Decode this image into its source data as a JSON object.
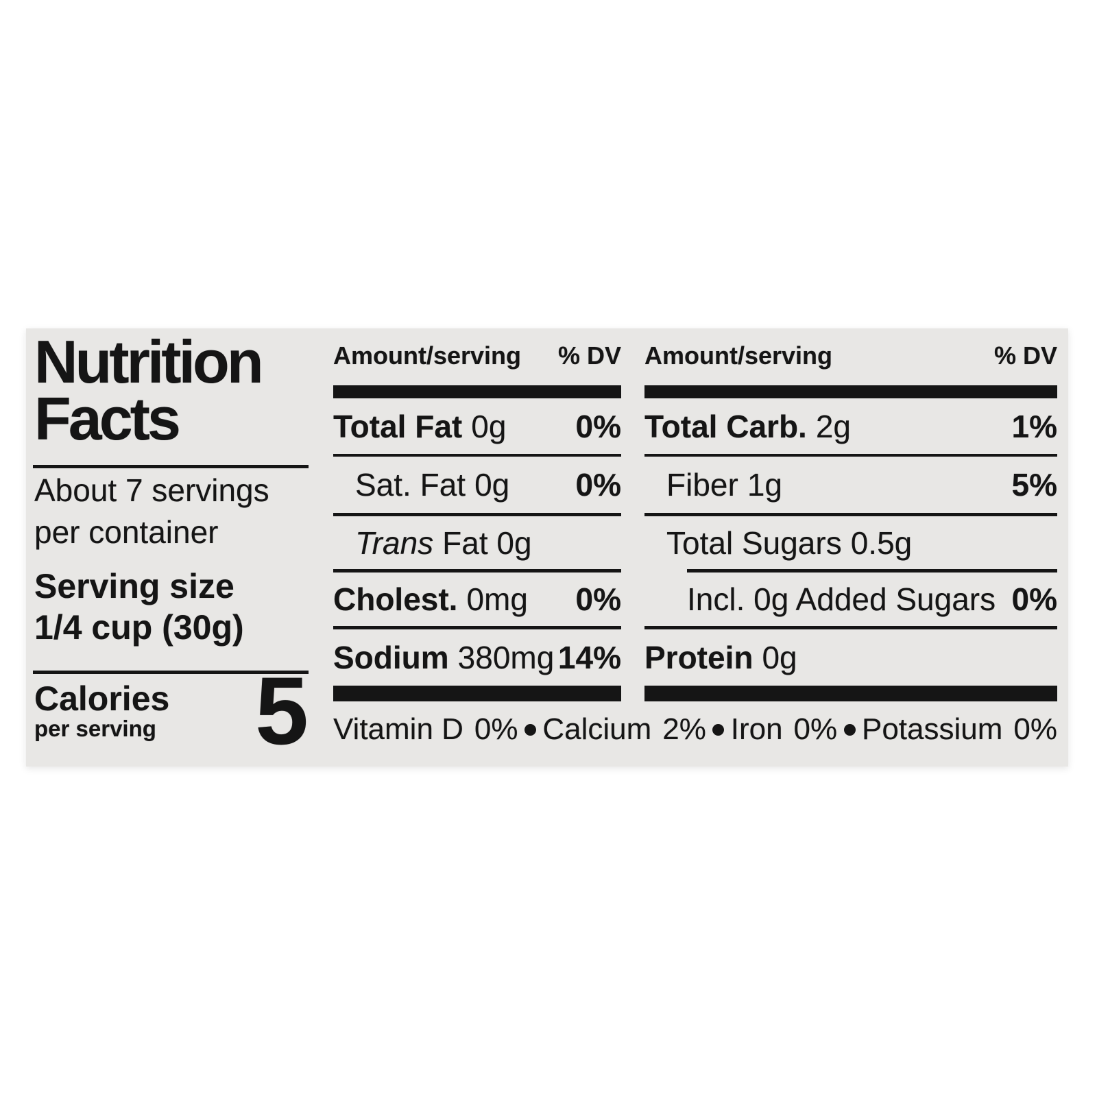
{
  "nutrition_label": {
    "title_line1": "Nutrition",
    "title_line2": "Facts",
    "servings_line1": "About 7 servings",
    "servings_line2": "per container",
    "serving_size_label": "Serving size",
    "serving_size_value": "1/4 cup (30g)",
    "calories": {
      "label": "Calories",
      "sublabel": "per serving",
      "value": "5"
    },
    "column_headers": {
      "amount": "Amount/serving",
      "dv": "% DV"
    },
    "nutrients_left": [
      {
        "name": "Total Fat",
        "amount": "0g",
        "dv": "0%"
      },
      {
        "name": "Sat. Fat",
        "amount": "0g",
        "dv": "0%"
      },
      {
        "name": "Trans",
        "amount": "Fat 0g",
        "dv": ""
      },
      {
        "name": "Cholest.",
        "amount": "0mg",
        "dv": "0%"
      },
      {
        "name": "Sodium",
        "amount": "380mg",
        "dv": "14%"
      }
    ],
    "nutrients_right": [
      {
        "name": "Total Carb.",
        "amount": "2g",
        "dv": "1%"
      },
      {
        "name": "Fiber",
        "amount": "1g",
        "dv": "5%"
      },
      {
        "name": "Total Sugars",
        "amount": "0.5g",
        "dv": ""
      },
      {
        "name": "Incl. 0g Added Sugars",
        "amount": "",
        "dv": "0%"
      },
      {
        "name": "Protein",
        "amount": "0g",
        "dv": ""
      }
    ],
    "micronutrients": [
      {
        "name": "Vitamin D",
        "value": "0%"
      },
      {
        "name": "Calcium",
        "value": "2%"
      },
      {
        "name": "Iron",
        "value": "0%"
      },
      {
        "name": "Potassium",
        "value": "0%"
      }
    ],
    "colors": {
      "label_background": "#e8e7e5",
      "ink": "#151515",
      "page_background": "#ffffff"
    }
  }
}
